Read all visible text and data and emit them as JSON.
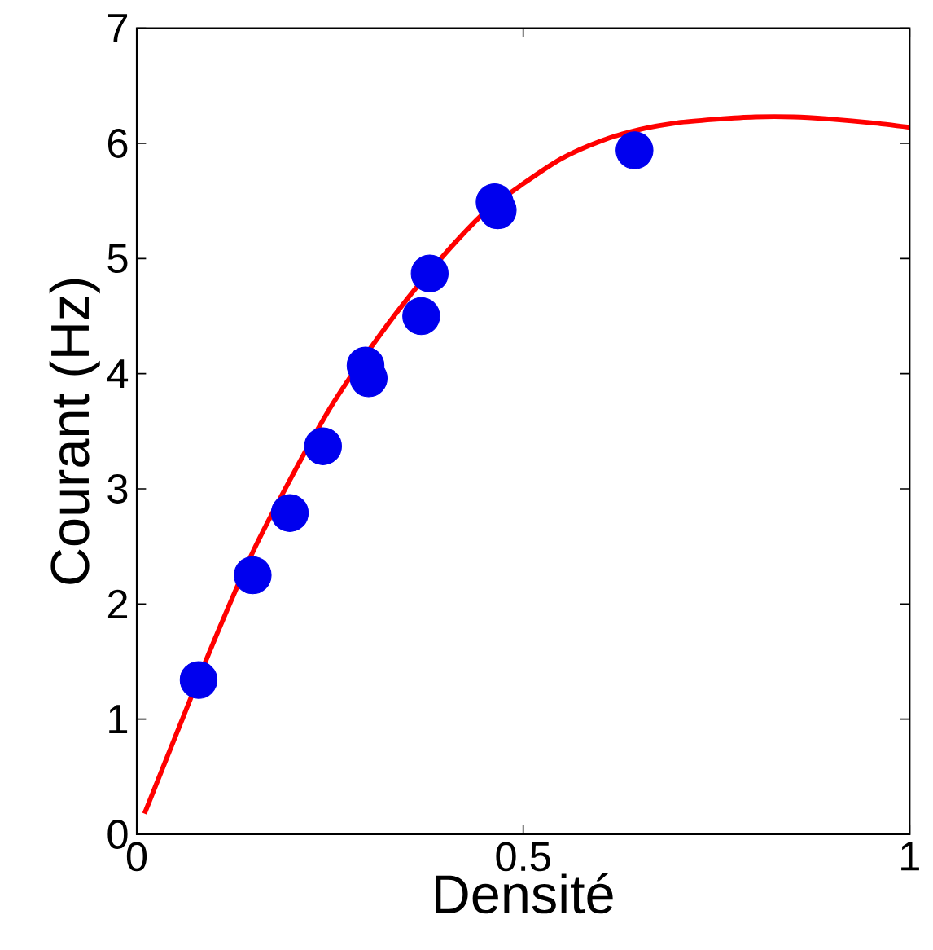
{
  "chart_data": {
    "type": "scatter",
    "xlabel": "Densité",
    "ylabel": "Courant (Hz)",
    "xlim": [
      0,
      1
    ],
    "ylim": [
      0,
      7
    ],
    "xticks": [
      0,
      0.5,
      1
    ],
    "yticks": [
      0,
      1,
      2,
      3,
      4,
      5,
      6,
      7
    ],
    "grid": false,
    "series": [
      {
        "color": "#0000ee",
        "marker": "circle",
        "x": [
          0.08,
          0.15,
          0.198,
          0.241,
          0.296,
          0.3,
          0.368,
          0.379,
          0.463,
          0.467,
          0.644
        ],
        "values": [
          1.34,
          2.25,
          2.79,
          3.37,
          4.07,
          3.96,
          4.5,
          4.87,
          5.49,
          5.42,
          5.94
        ]
      },
      {
        "type": "line",
        "color": "#ff0000",
        "marker": "none",
        "x": [
          0.01,
          0.05,
          0.1,
          0.15,
          0.2,
          0.25,
          0.3,
          0.35,
          0.4,
          0.45,
          0.5,
          0.55,
          0.6,
          0.65,
          0.7,
          0.75,
          0.8,
          0.85,
          0.9,
          0.95,
          1.0
        ],
        "values": [
          0.18,
          0.85,
          1.68,
          2.45,
          3.1,
          3.7,
          4.2,
          4.65,
          5.05,
          5.4,
          5.65,
          5.87,
          6.02,
          6.12,
          6.18,
          6.21,
          6.23,
          6.23,
          6.21,
          6.18,
          6.14
        ]
      }
    ]
  }
}
